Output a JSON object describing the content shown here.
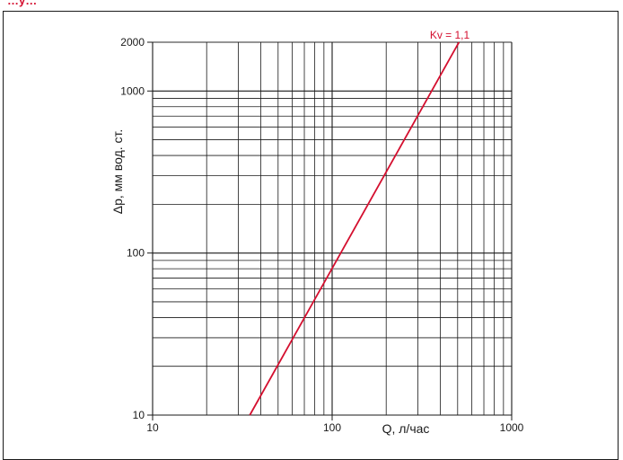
{
  "header": {
    "fragment_text": "…у…"
  },
  "chart_data": {
    "type": "line",
    "x_scale": "log",
    "y_scale": "log",
    "xlim": [
      10,
      1000
    ],
    "ylim": [
      10,
      2000
    ],
    "xlabel": "Q, л/час",
    "ylabel": "Δp, мм вод. ст.",
    "x_ticks": [
      10,
      100,
      1000
    ],
    "x_tick_labels": [
      "10",
      "100",
      "1000"
    ],
    "y_ticks": [
      10,
      100,
      1000,
      2000
    ],
    "y_tick_labels": [
      "10",
      "100",
      "1000",
      "2000"
    ],
    "grid": true,
    "series": [
      {
        "name": "Kv = 1,1",
        "color": "#d40f2f",
        "x": [
          34.8,
          509
        ],
        "y": [
          10,
          2000
        ]
      }
    ]
  }
}
